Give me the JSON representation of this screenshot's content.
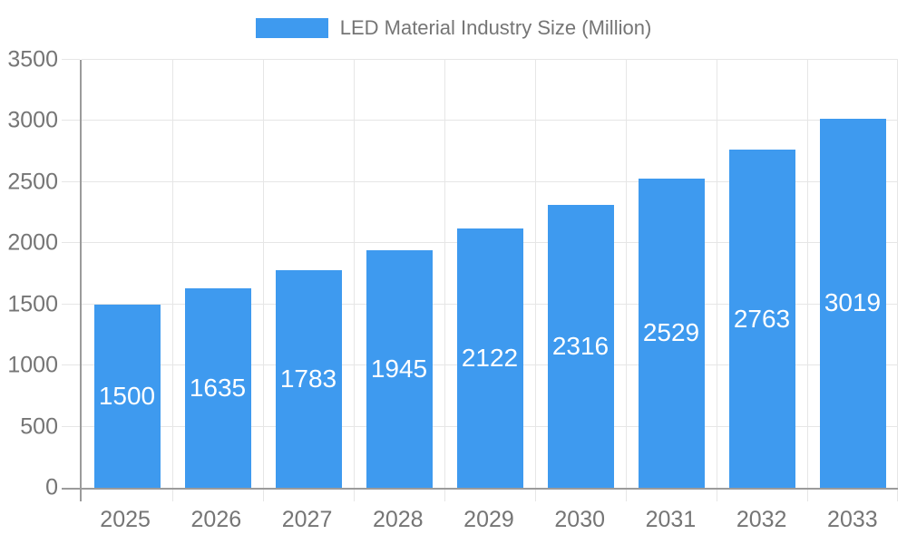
{
  "chart_data": {
    "type": "bar",
    "title": "",
    "legend": {
      "label": "LED Material Industry Size (Million)",
      "position": "top-center",
      "swatch_color": "#3e9aef"
    },
    "categories": [
      "2025",
      "2026",
      "2027",
      "2028",
      "2029",
      "2030",
      "2031",
      "2032",
      "2033"
    ],
    "series": [
      {
        "name": "LED Material Industry Size (Million)",
        "values": [
          1500,
          1635,
          1783,
          1945,
          2122,
          2316,
          2529,
          2763,
          3019
        ]
      }
    ],
    "value_labels": {
      "show": true,
      "placement": "inside-middle",
      "color": "#ffffff"
    },
    "xlabel": "",
    "ylabel": "",
    "ylim": [
      0,
      3500
    ],
    "y_ticks": [
      0,
      500,
      1000,
      1500,
      2000,
      2500,
      3000,
      3500
    ],
    "grid": {
      "horizontal": true,
      "vertical": true
    },
    "colors": {
      "bar": "#3e9aef",
      "grid": "#e6e6e6",
      "axis": "#9b9b9b",
      "text": "#757575",
      "value_label": "#ffffff",
      "background": "#ffffff"
    }
  }
}
